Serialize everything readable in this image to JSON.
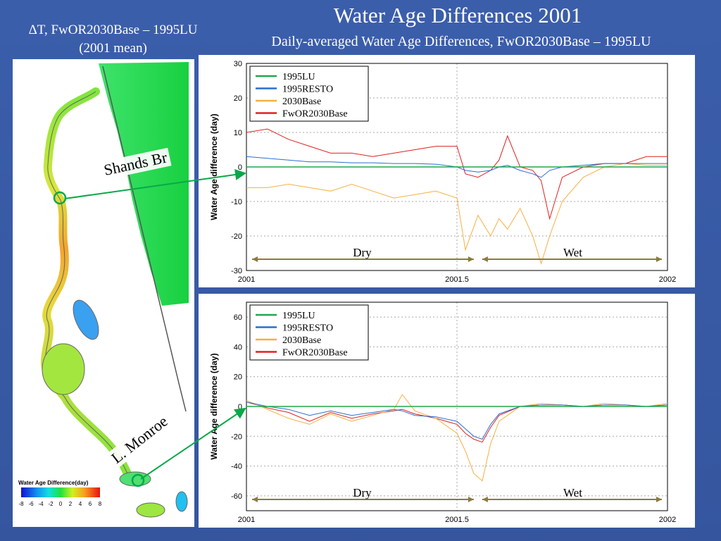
{
  "slide": {
    "title": "Water Age Differences 2001",
    "subtitle": "Daily-averaged Water Age Differences, FwOR2030Base – 1995LU",
    "left_title_line1": "ΔT, FwOR2030Base – 1995LU",
    "left_title_line2": "(2001 mean)"
  },
  "map": {
    "colorbar_label": "Water Age Difference(day)",
    "colorbar_ticks": [
      "-8",
      "-6",
      "-4",
      "-2",
      "0",
      "2",
      "4",
      "6",
      "8"
    ],
    "callouts": {
      "shands": "Shands Br",
      "monroe": "L. Monroe"
    }
  },
  "colors": {
    "1995LU": "#1fa84a",
    "1995RESTO": "#2a6fd0",
    "2030Base": "#f6b040",
    "FwOR2030Base": "#e02020",
    "season_arrow": "#8b7a3a"
  },
  "chart_data": [
    {
      "type": "line",
      "ylabel": "Water Age difference (day)",
      "xlim": [
        2001,
        2002
      ],
      "ylim": [
        -30,
        30
      ],
      "yticks": [
        -30,
        -20,
        -10,
        0,
        10,
        20,
        30
      ],
      "xticks": [
        "2001",
        "2001.5",
        "2002"
      ],
      "grid": true,
      "legend": "top-left",
      "season_labels": [
        "Dry",
        "Wet"
      ],
      "season_split": 2001.55,
      "x": [
        2001.0,
        2001.05,
        2001.1,
        2001.15,
        2001.2,
        2001.25,
        2001.3,
        2001.35,
        2001.4,
        2001.45,
        2001.5,
        2001.52,
        2001.55,
        2001.58,
        2001.6,
        2001.62,
        2001.65,
        2001.68,
        2001.7,
        2001.72,
        2001.75,
        2001.8,
        2001.85,
        2001.9,
        2001.95,
        2002.0
      ],
      "series": [
        {
          "name": "1995LU",
          "values": [
            0,
            0,
            0,
            0,
            0,
            0,
            0,
            0,
            0,
            0,
            0,
            0,
            0,
            0,
            0,
            0,
            0,
            0,
            0,
            0,
            0,
            0,
            0,
            0,
            0,
            0
          ]
        },
        {
          "name": "1995RESTO",
          "values": [
            3,
            2.5,
            2,
            1.5,
            1.5,
            1.2,
            1.2,
            1,
            1,
            0.8,
            0,
            -1,
            -1.5,
            -1,
            0,
            0.5,
            -1,
            -2,
            -3,
            -1,
            0,
            0.5,
            1,
            1,
            1,
            1
          ]
        },
        {
          "name": "2030Base",
          "values": [
            -6,
            -6,
            -5,
            -6,
            -7,
            -5,
            -7,
            -9,
            -8,
            -7,
            -9,
            -24,
            -14,
            -20,
            -15,
            -18,
            -12,
            -20,
            -28,
            -20,
            -10,
            -3,
            0,
            1,
            0.5,
            0.5
          ]
        },
        {
          "name": "FwOR2030Base",
          "values": [
            10,
            11,
            8,
            6,
            4,
            4,
            3,
            4,
            5,
            6,
            6,
            -2,
            -3,
            -1,
            2,
            9,
            0,
            -1,
            -4,
            -15,
            -3,
            0,
            1,
            1,
            3,
            3
          ]
        }
      ]
    },
    {
      "type": "line",
      "ylabel": "Water Age difference (day)",
      "xlim": [
        2001,
        2002
      ],
      "ylim": [
        -70,
        70
      ],
      "yticks": [
        -60,
        -40,
        -20,
        0,
        20,
        40,
        60
      ],
      "xticks": [
        "2001",
        "2001.5",
        "2002"
      ],
      "grid": true,
      "legend": "top-left",
      "season_labels": [
        "Dry",
        "Wet"
      ],
      "season_split": 2001.55,
      "x": [
        2001.0,
        2001.05,
        2001.1,
        2001.15,
        2001.2,
        2001.25,
        2001.3,
        2001.35,
        2001.37,
        2001.4,
        2001.45,
        2001.5,
        2001.52,
        2001.54,
        2001.56,
        2001.58,
        2001.6,
        2001.65,
        2001.7,
        2001.75,
        2001.8,
        2001.85,
        2001.9,
        2001.95,
        2002.0
      ],
      "series": [
        {
          "name": "1995LU",
          "values": [
            0,
            0,
            0,
            0,
            0,
            0,
            0,
            0,
            0,
            0,
            0,
            0,
            0,
            0,
            0,
            0,
            0,
            0,
            0,
            0,
            0,
            0,
            0,
            0,
            0
          ]
        },
        {
          "name": "1995RESTO",
          "values": [
            3,
            0,
            -2,
            -6,
            -3,
            -6,
            -4,
            -2,
            -3,
            -6,
            -7,
            -10,
            -15,
            -20,
            -22,
            -12,
            -5,
            0,
            1,
            1,
            0,
            1,
            1,
            0,
            1
          ]
        },
        {
          "name": "2030Base",
          "values": [
            4,
            -2,
            -8,
            -12,
            -5,
            -10,
            -6,
            -2,
            8,
            -3,
            -8,
            -18,
            -30,
            -45,
            -50,
            -25,
            -10,
            0,
            2,
            1,
            0,
            2,
            1,
            0,
            2
          ]
        },
        {
          "name": "FwOR2030Base",
          "values": [
            3,
            -1,
            -4,
            -10,
            -4,
            -8,
            -5,
            -3,
            -2,
            -5,
            -8,
            -12,
            -18,
            -22,
            -24,
            -14,
            -6,
            0,
            1,
            1,
            0,
            1,
            1,
            0,
            1
          ]
        }
      ]
    }
  ]
}
